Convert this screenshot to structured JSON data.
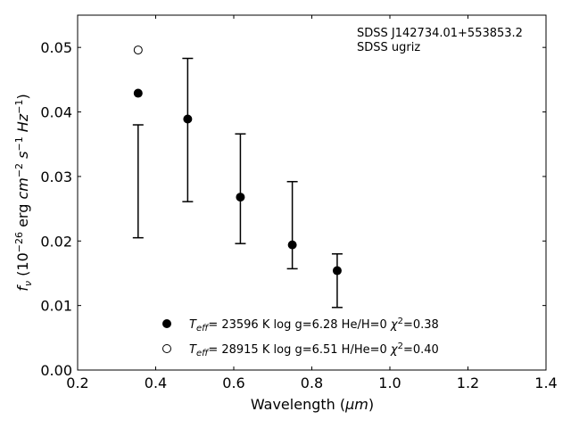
{
  "chart_data": {
    "type": "scatter",
    "xlabel": "Wavelength (μm)",
    "ylabel": "f_ν (10^-26 erg cm^-2 s^-1 Hz^-1)",
    "xlim": [
      0.2,
      1.4
    ],
    "ylim": [
      0.0,
      0.055
    ],
    "x_ticks": [
      "0.2",
      "0.4",
      "0.6",
      "0.8",
      "1.0",
      "1.2",
      "1.4"
    ],
    "y_ticks": [
      "0.00",
      "0.01",
      "0.02",
      "0.03",
      "0.04",
      "0.05"
    ],
    "grid": false,
    "annotations": [
      "SDSS J142734.01+553853.2",
      "SDSS ugriz"
    ],
    "observed": {
      "x": [
        0.355,
        0.482,
        0.617,
        0.75,
        0.865
      ],
      "y_low": [
        0.0205,
        0.0261,
        0.0196,
        0.0157,
        0.0097
      ],
      "y_high": [
        0.038,
        0.0483,
        0.0366,
        0.0292,
        0.018
      ]
    },
    "series": [
      {
        "name": "T_eff= 23596 K  log g=6.28  He/H=0  χ²=0.38",
        "marker": "filled-circle",
        "x": [
          0.355,
          0.482,
          0.617,
          0.75,
          0.865
        ],
        "y": [
          0.0429,
          0.0389,
          0.0268,
          0.0194,
          0.0154
        ]
      },
      {
        "name": "T_eff= 28915 K  log g=6.51  H/He=0  χ²=0.40",
        "marker": "open-circle",
        "x": [
          0.355
        ],
        "y": [
          0.0496
        ]
      }
    ],
    "legend_position": "lower-center"
  }
}
